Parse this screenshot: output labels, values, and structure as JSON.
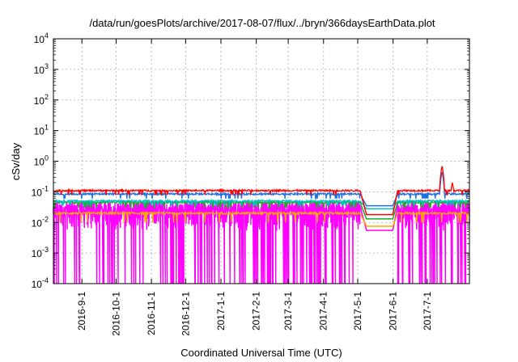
{
  "chart_data": {
    "type": "line",
    "title": "/data/run/goesPlots/archive/2017-08-07/flux/../bryn/366daysEarthData.plot",
    "xlabel": "Coordinated Universal Time (UTC)",
    "ylabel": "cSv/day",
    "yscale": "log",
    "ylim": [
      0.0001,
      10000
    ],
    "xlim": [
      "2016-08-07",
      "2017-08-07"
    ],
    "grid": true,
    "legend": "none",
    "y_ticks": [
      {
        "base": "10",
        "exp": "-4",
        "value": 0.0001
      },
      {
        "base": "10",
        "exp": "-3",
        "value": 0.001
      },
      {
        "base": "10",
        "exp": "-2",
        "value": 0.01
      },
      {
        "base": "10",
        "exp": "-1",
        "value": 0.1
      },
      {
        "base": "10",
        "exp": "0",
        "value": 1
      },
      {
        "base": "10",
        "exp": "1",
        "value": 10
      },
      {
        "base": "10",
        "exp": "2",
        "value": 100
      },
      {
        "base": "10",
        "exp": "3",
        "value": 1000
      },
      {
        "base": "10",
        "exp": "4",
        "value": 10000
      }
    ],
    "x_ticks": [
      {
        "label": "2016-9-1",
        "date": "2016-09-01"
      },
      {
        "label": "2016-10-1",
        "date": "2016-10-01"
      },
      {
        "label": "2016-11-1",
        "date": "2016-11-01"
      },
      {
        "label": "2016-12-1",
        "date": "2016-12-01"
      },
      {
        "label": "2017-1-1",
        "date": "2017-01-01"
      },
      {
        "label": "2017-2-1",
        "date": "2017-02-01"
      },
      {
        "label": "2017-3-1",
        "date": "2017-03-01"
      },
      {
        "label": "2017-4-1",
        "date": "2017-04-01"
      },
      {
        "label": "2017-5-1",
        "date": "2017-05-01"
      },
      {
        "label": "2017-6-1",
        "date": "2017-06-01"
      },
      {
        "label": "2017-7-1",
        "date": "2017-07-01"
      }
    ],
    "data_gap": {
      "start": "2017-05-03",
      "end": "2017-06-05"
    },
    "series": [
      {
        "color": "#ff0000",
        "level": 0.11,
        "jitter": 0.06,
        "dip_to": 0.08,
        "gap_value": 0.018
      },
      {
        "color": "#1e6fe0",
        "level": 0.085,
        "jitter": 0.07,
        "dip_to": 0.06,
        "gap_value": 0.035
      },
      {
        "color": "#00c0c0",
        "level": 0.05,
        "jitter": 0.07,
        "dip_to": 0.035,
        "gap_value": 0.028
      },
      {
        "color": "#22aa22",
        "level": 0.045,
        "jitter": 0.06,
        "dip_to": 0.03,
        "gap_value": 0.013
      },
      {
        "color": "#ffaa00",
        "level": 0.02,
        "jitter": 0.07,
        "dip_to": 0.01,
        "gap_value": 0.0075
      },
      {
        "color": "#ff00ff",
        "level": 0.035,
        "jitter": 0.9,
        "dip_to": 0.0001,
        "gap_value": 0.0055
      }
    ],
    "events": [
      {
        "date": "2017-07-14",
        "peak": 0.7,
        "color": "#ff0000"
      },
      {
        "date": "2017-07-14",
        "peak": 0.45,
        "color": "#1e6fe0"
      },
      {
        "date": "2017-07-23",
        "peak": 0.2,
        "color": "#ff0000"
      }
    ]
  }
}
